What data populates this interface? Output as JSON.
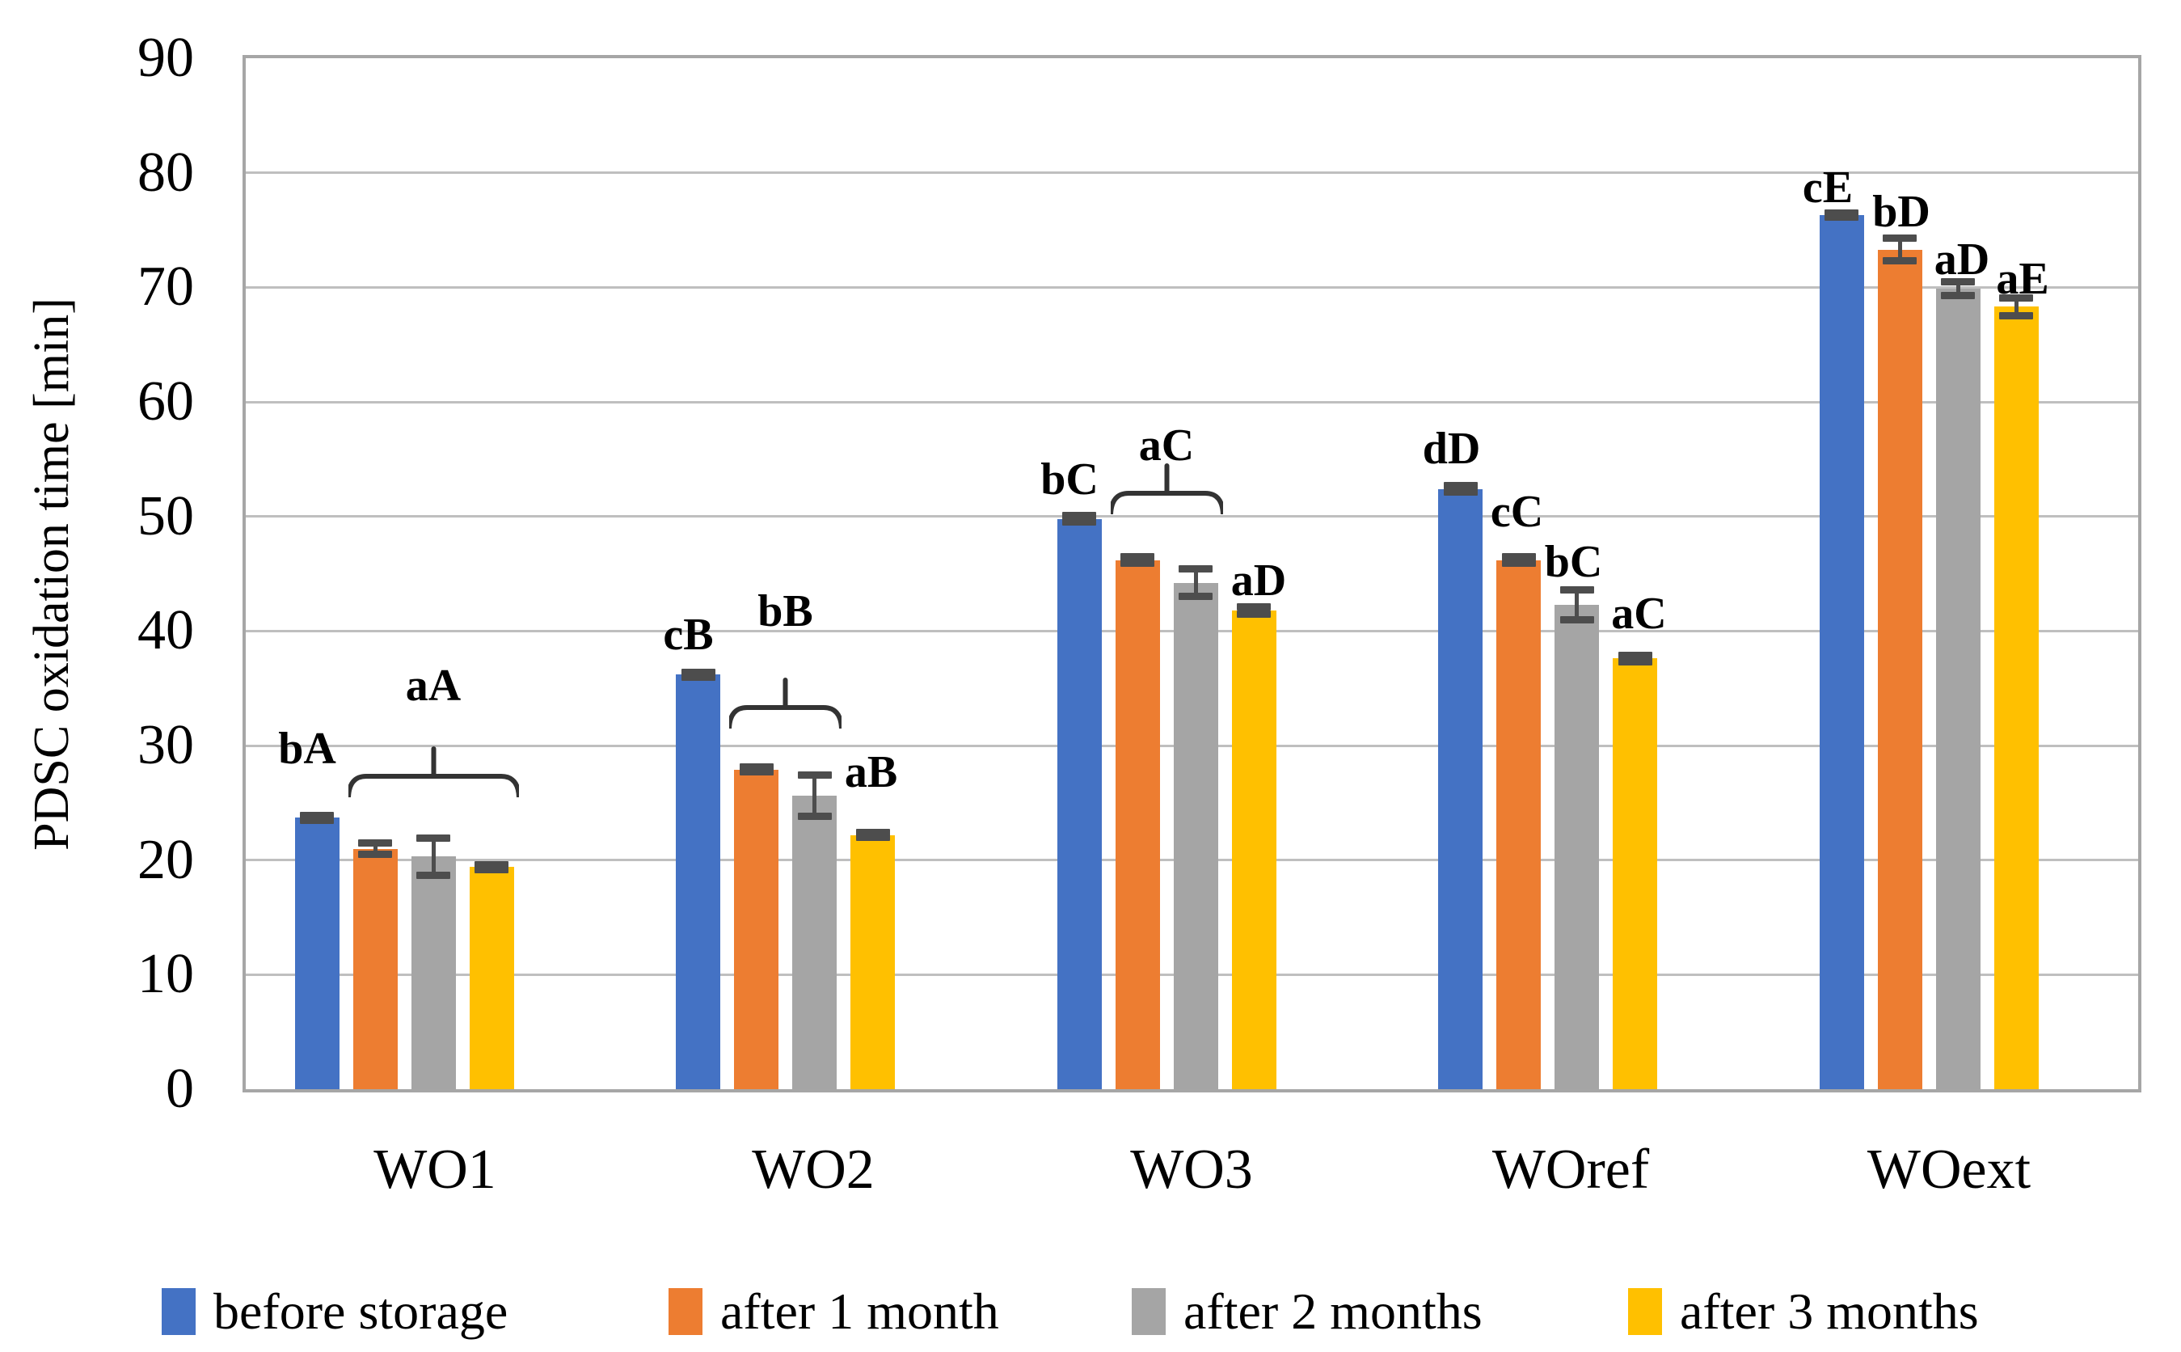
{
  "chart_data": {
    "type": "bar",
    "title": "",
    "ylabel": "PDSC oxidation time [min]",
    "xlabel": "",
    "ylim": [
      0,
      90
    ],
    "yticks": [
      "0",
      "10",
      "20",
      "30",
      "40",
      "50",
      "60",
      "70",
      "80",
      "90"
    ],
    "grid": true,
    "legend_position": "bottom",
    "categories": [
      "WO1",
      "WO2",
      "WO3",
      "WOref",
      "WOext"
    ],
    "series": [
      {
        "name": "before storage",
        "color": "#4472C4",
        "values": [
          23.7,
          36.2,
          49.8,
          52.4,
          76.3
        ],
        "errors": [
          0.2,
          0.2,
          0.3,
          0.3,
          0.2
        ]
      },
      {
        "name": "after 1 month",
        "color": "#ED7D31",
        "values": [
          21.0,
          27.9,
          46.2,
          46.2,
          73.3
        ],
        "errors": [
          0.5,
          0.2,
          0.3,
          0.3,
          1.0
        ]
      },
      {
        "name": "after 2 months",
        "color": "#A5A5A5",
        "values": [
          20.3,
          25.6,
          44.2,
          42.3,
          69.9
        ],
        "errors": [
          1.6,
          1.8,
          1.2,
          1.3,
          0.6
        ]
      },
      {
        "name": "after 3 months",
        "color": "#FFC000",
        "values": [
          19.4,
          22.2,
          41.8,
          37.6,
          68.3
        ],
        "errors": [
          0.2,
          0.2,
          0.3,
          0.3,
          0.8
        ]
      }
    ],
    "stat_letters": [
      {
        "group": 0,
        "bar": 0,
        "text": "bA",
        "y": 28.5,
        "dx": -12
      },
      {
        "group": 1,
        "bar": 0,
        "text": "cB",
        "y": 38.5,
        "dx": -12
      },
      {
        "group": 1,
        "bar": 3,
        "text": "aB",
        "y": 26.5,
        "dx": -2
      },
      {
        "group": 2,
        "bar": 0,
        "text": "bC",
        "y": 52.0,
        "dx": -12
      },
      {
        "group": 2,
        "bar": 3,
        "text": "aD",
        "y": 43.2,
        "dx": 6
      },
      {
        "group": 3,
        "bar": 0,
        "text": "dD",
        "y": 54.7,
        "dx": -11
      },
      {
        "group": 3,
        "bar": 1,
        "text": "cC",
        "y": 49.2,
        "dx": -2
      },
      {
        "group": 3,
        "bar": 2,
        "text": "bC",
        "y": 44.8,
        "dx": -4
      },
      {
        "group": 3,
        "bar": 3,
        "text": "aC",
        "y": 40.3,
        "dx": 5
      },
      {
        "group": 4,
        "bar": 0,
        "text": "cE",
        "y": 77.5,
        "dx": -17
      },
      {
        "group": 4,
        "bar": 1,
        "text": "bD",
        "y": 75.4,
        "dx": 2
      },
      {
        "group": 4,
        "bar": 2,
        "text": "aD",
        "y": 71.2,
        "dx": 5
      },
      {
        "group": 4,
        "bar": 3,
        "text": "aE",
        "y": 69.5,
        "dx": 8
      }
    ],
    "braces": [
      {
        "group": 0,
        "from": 1,
        "to": 3,
        "y": 25.5,
        "label": "aA",
        "label_y": 34.0
      },
      {
        "group": 1,
        "from": 1,
        "to": 2,
        "y": 31.5,
        "label": "bB",
        "label_y": 40.5
      },
      {
        "group": 2,
        "from": 1,
        "to": 2,
        "y": 50.2,
        "label": "aC",
        "label_y": 55.0
      }
    ],
    "colors": {
      "gridline": "#BFBFBF",
      "frame": "#A6A6A6",
      "error_bar": "#4D4D4D",
      "text": "#000000",
      "background": "#FFFFFF"
    }
  }
}
